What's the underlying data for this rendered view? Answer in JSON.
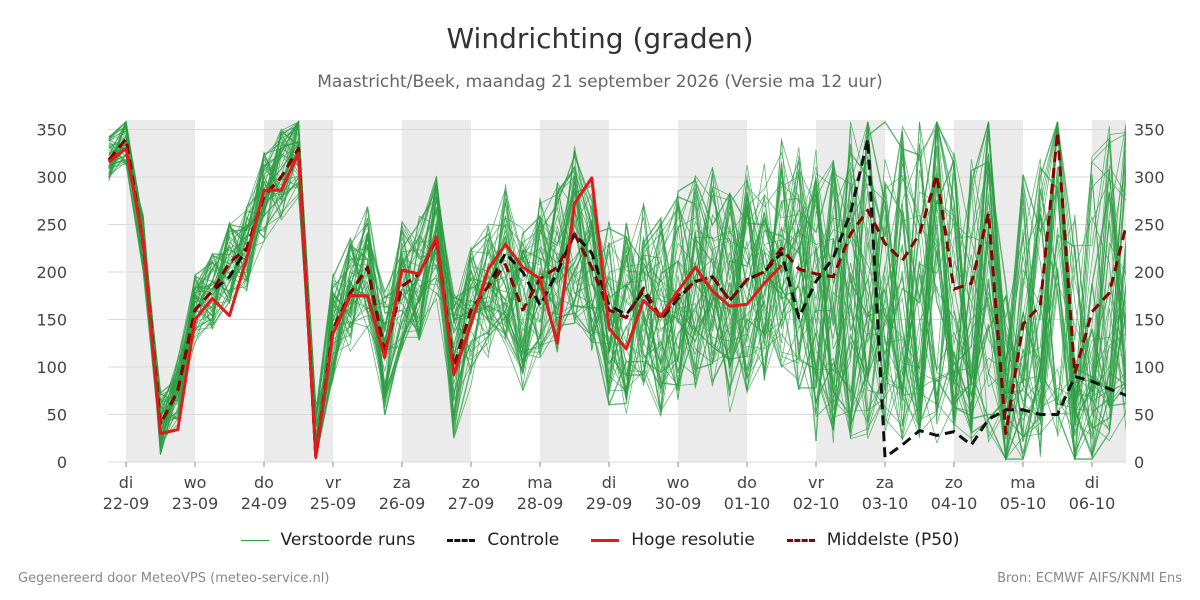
{
  "header": {
    "title": "Windrichting (graden)",
    "subtitle": "Maastricht/Beek, maandag 21 september 2026 (Versie ma 12 uur)"
  },
  "footer": {
    "left": "Gegenereerd door MeteoVPS (meteo-service.nl)",
    "right": "Bron: ECMWF AIFS/KNMI Ens"
  },
  "legend": [
    {
      "label": "Verstoorde runs",
      "color": "#2e9e44",
      "style": "thin-solid"
    },
    {
      "label": "Controle",
      "color": "#111111",
      "style": "dashed"
    },
    {
      "label": "Hoge resolutie",
      "color": "#e31a1c",
      "style": "solid"
    },
    {
      "label": "Middelste (P50)",
      "color": "#8b0000",
      "style": "dashed"
    }
  ],
  "chart_data": {
    "type": "line",
    "title": "Windrichting (graden)",
    "ylim": [
      0,
      360
    ],
    "yticks": [
      0,
      50,
      100,
      150,
      200,
      250,
      300,
      350
    ],
    "x_unit": "days since 22-09 00:00",
    "xlim": [
      -0.25,
      14.5
    ],
    "day_labels": [
      {
        "weekday": "di",
        "date": "22-09"
      },
      {
        "weekday": "wo",
        "date": "23-09"
      },
      {
        "weekday": "do",
        "date": "24-09"
      },
      {
        "weekday": "vr",
        "date": "25-09"
      },
      {
        "weekday": "za",
        "date": "26-09"
      },
      {
        "weekday": "zo",
        "date": "27-09"
      },
      {
        "weekday": "ma",
        "date": "28-09"
      },
      {
        "weekday": "di",
        "date": "29-09"
      },
      {
        "weekday": "wo",
        "date": "30-09"
      },
      {
        "weekday": "do",
        "date": "01-10"
      },
      {
        "weekday": "vr",
        "date": "02-10"
      },
      {
        "weekday": "za",
        "date": "03-10"
      },
      {
        "weekday": "zo",
        "date": "04-10"
      },
      {
        "weekday": "ma",
        "date": "05-10"
      },
      {
        "weekday": "di",
        "date": "06-10"
      }
    ],
    "shaded_days": [
      0,
      2,
      4,
      6,
      8,
      10,
      12,
      14
    ],
    "grid": true,
    "legend_position": "bottom",
    "colors": {
      "ensemble": "#2e9e44",
      "control": "#111111",
      "hires": "#e31a1c",
      "median": "#8b0000",
      "shading": "#ebebeb"
    },
    "series": [
      {
        "name": "Hoge resolutie",
        "key": "hires",
        "x": [
          -0.25,
          0,
          0.25,
          0.5,
          0.75,
          1,
          1.25,
          1.5,
          1.75,
          2,
          2.25,
          2.5,
          2.75,
          3,
          3.25,
          3.5,
          3.75,
          4,
          4.25,
          4.5,
          4.75,
          5,
          5.25,
          5.5,
          5.75,
          6,
          6.25,
          6.5,
          6.75,
          7,
          7.25,
          7.5,
          7.75,
          8,
          8.25,
          8.5,
          8.75,
          9,
          9.25,
          9.5
        ],
        "y": [
          316,
          330,
          232,
          30,
          34,
          150,
          172,
          154,
          215,
          286,
          286,
          325,
          5,
          135,
          175,
          175,
          110,
          202,
          198,
          237,
          92,
          145,
          203,
          229,
          205,
          193,
          125,
          272,
          299,
          141,
          119,
          170,
          153,
          180,
          205,
          180,
          164,
          166,
          188,
          207
        ]
      },
      {
        "name": "Controle",
        "key": "control",
        "x": [
          -0.25,
          0,
          0.25,
          0.5,
          0.75,
          1,
          1.25,
          1.5,
          1.75,
          2,
          2.25,
          2.5,
          2.75,
          3,
          3.25,
          3.5,
          3.75,
          4,
          4.25,
          4.5,
          4.75,
          5,
          5.25,
          5.5,
          5.75,
          6,
          6.25,
          6.5,
          6.75,
          7,
          7.25,
          7.5,
          7.75,
          8,
          8.25,
          8.5,
          8.75,
          9,
          9.25,
          9.5,
          9.75,
          10,
          10.25,
          10.5,
          10.75,
          11,
          11.25,
          11.5,
          11.75,
          12,
          12.25,
          12.5,
          12.75,
          13,
          13.25,
          13.5,
          13.75,
          14,
          14.25,
          14.5
        ],
        "y": [
          318,
          340,
          230,
          40,
          75,
          160,
          180,
          195,
          225,
          280,
          300,
          330,
          5,
          140,
          178,
          205,
          115,
          185,
          198,
          235,
          100,
          160,
          185,
          220,
          200,
          165,
          200,
          240,
          220,
          165,
          155,
          180,
          150,
          172,
          190,
          195,
          170,
          192,
          200,
          220,
          152,
          190,
          215,
          262,
          340,
          5,
          18,
          33,
          28,
          32,
          18,
          45,
          55,
          55,
          50,
          50,
          90,
          85,
          77,
          70
        ]
      },
      {
        "name": "Middelste (P50)",
        "key": "median",
        "x": [
          -0.25,
          0,
          0.25,
          0.5,
          0.75,
          1,
          1.25,
          1.5,
          1.75,
          2,
          2.25,
          2.5,
          2.75,
          3,
          3.25,
          3.5,
          3.75,
          4,
          4.25,
          4.5,
          4.75,
          5,
          5.25,
          5.5,
          5.75,
          6,
          6.25,
          6.5,
          6.75,
          7,
          7.25,
          7.5,
          7.75,
          8,
          8.25,
          8.5,
          8.75,
          9,
          9.25,
          9.5,
          9.75,
          10,
          10.25,
          10.5,
          10.75,
          11,
          11.25,
          11.5,
          11.75,
          12,
          12.25,
          12.5,
          12.75,
          13,
          13.25,
          13.5,
          13.75,
          14,
          14.25,
          14.5
        ],
        "y": [
          318,
          340,
          230,
          40,
          75,
          160,
          180,
          210,
          225,
          280,
          300,
          330,
          5,
          140,
          178,
          205,
          115,
          185,
          198,
          235,
          100,
          160,
          185,
          208,
          160,
          193,
          205,
          240,
          205,
          160,
          152,
          183,
          152,
          175,
          190,
          195,
          170,
          192,
          200,
          225,
          203,
          198,
          195,
          240,
          265,
          230,
          212,
          240,
          302,
          182,
          188,
          262,
          30,
          145,
          165,
          347,
          93,
          158,
          178,
          250
        ]
      }
    ]
  }
}
